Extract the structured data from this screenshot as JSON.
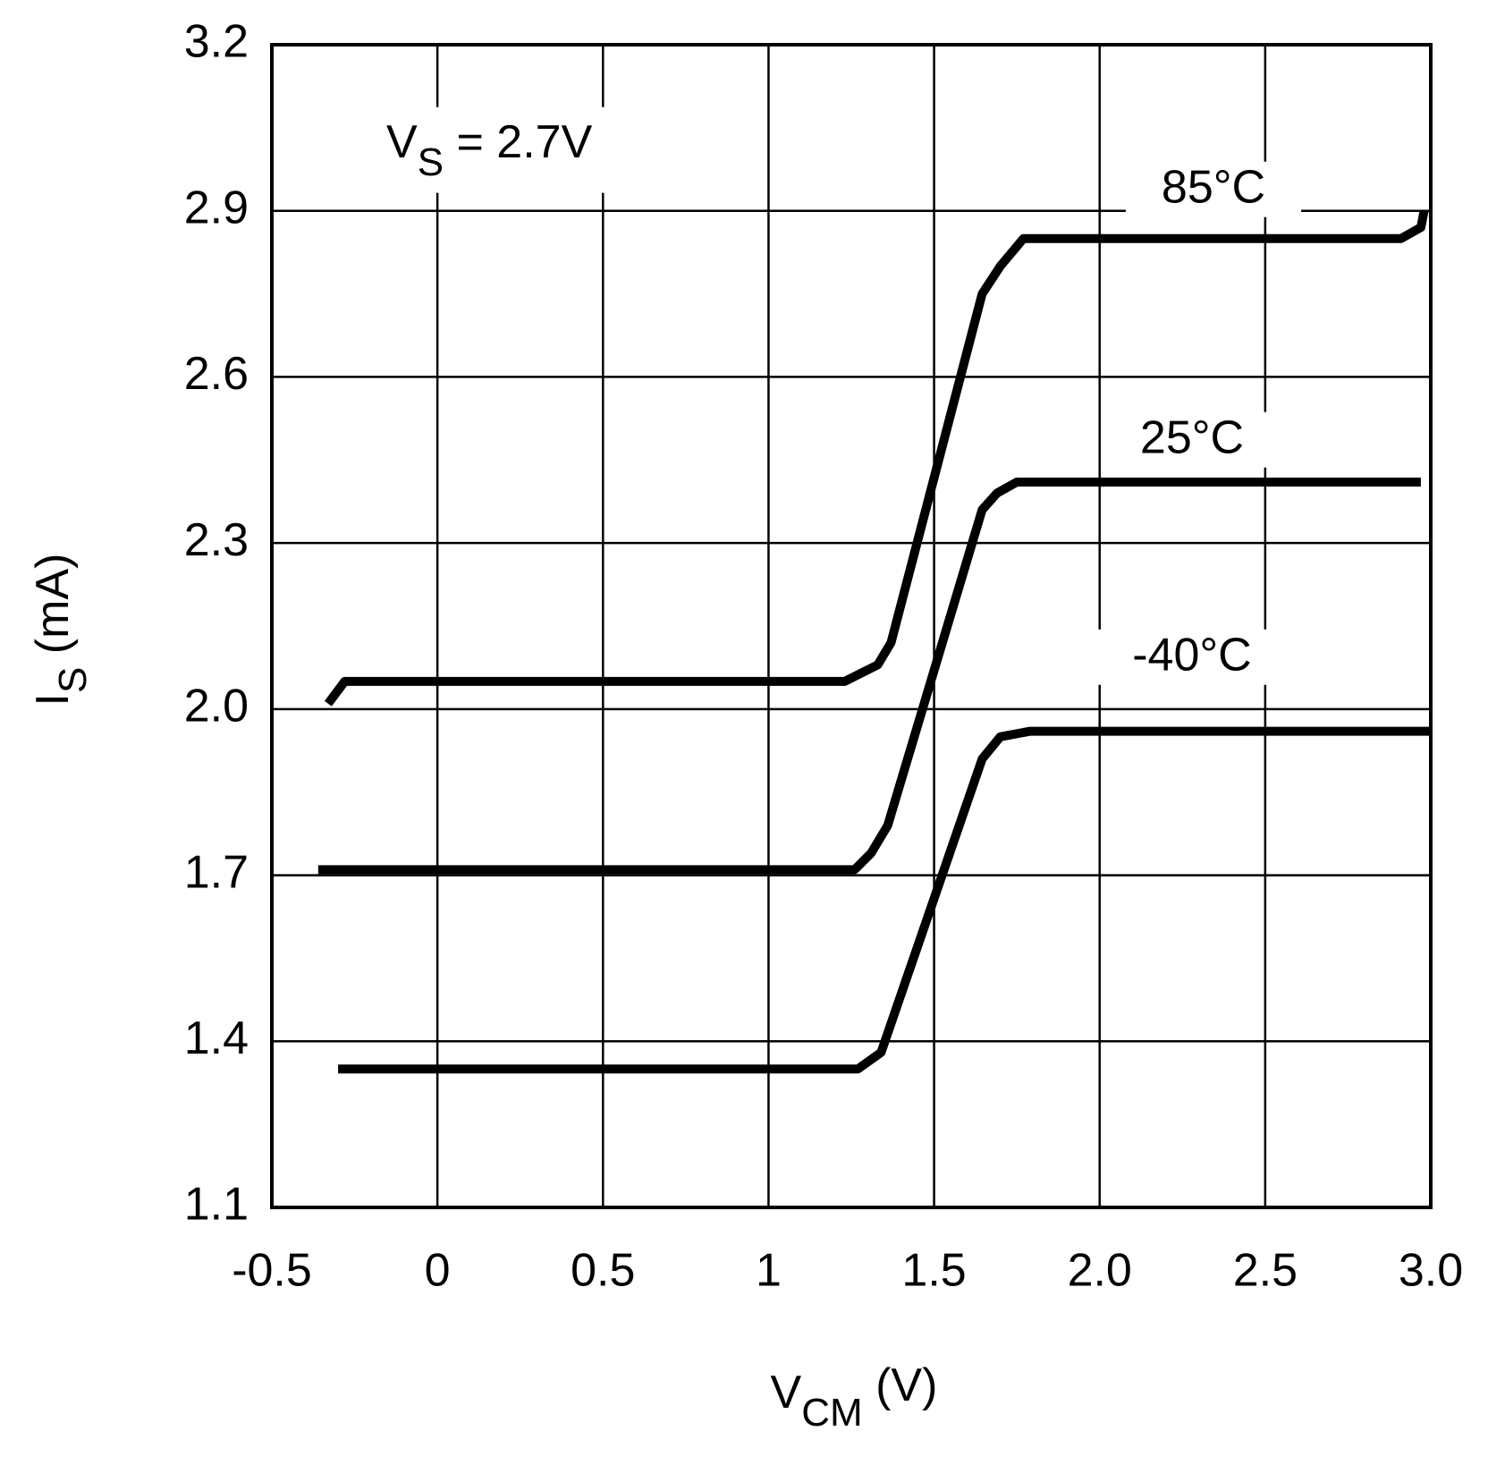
{
  "chart_data": {
    "type": "line",
    "annotation": {
      "main": "V",
      "sub": "S",
      "rest": " = 2.7V"
    },
    "x_label": {
      "main": "V",
      "sub": "CM",
      "rest": " (V)"
    },
    "y_label": {
      "main": "I",
      "sub": "S",
      "rest": " (mA)"
    },
    "xlim": [
      -0.5,
      3.0
    ],
    "ylim": [
      1.1,
      3.2
    ],
    "xticks": [
      -0.5,
      0,
      0.5,
      1,
      1.5,
      {
        "value": 2,
        "label": "2.0"
      },
      2.5,
      {
        "value": 3,
        "label": "3.0"
      }
    ],
    "yticks": [
      1.1,
      1.4,
      1.7,
      {
        "value": 2,
        "label": "2.0"
      },
      2.3,
      2.6,
      2.9,
      3.2
    ],
    "grid": true,
    "series": [
      {
        "name": "85°C",
        "color": "#000000",
        "x": [
          -0.33,
          -0.28,
          1.23,
          1.33,
          1.37,
          1.645,
          1.7,
          1.77,
          2.91,
          2.97,
          2.98
        ],
        "values": [
          2.01,
          2.05,
          2.05,
          2.08,
          2.12,
          2.75,
          2.8,
          2.85,
          2.85,
          2.87,
          2.9
        ]
      },
      {
        "name": "25°C",
        "color": "#000000",
        "x": [
          -0.36,
          1.26,
          1.31,
          1.36,
          1.645,
          1.69,
          1.75,
          2.97
        ],
        "values": [
          1.71,
          1.71,
          1.74,
          1.79,
          2.36,
          2.39,
          2.41,
          2.41
        ]
      },
      {
        "name": "-40°C",
        "color": "#000000",
        "x": [
          -0.3,
          1.27,
          1.34,
          1.645,
          1.7,
          1.79,
          3.0
        ],
        "values": [
          1.35,
          1.35,
          1.38,
          1.91,
          1.95,
          1.96,
          1.96
        ]
      }
    ]
  }
}
